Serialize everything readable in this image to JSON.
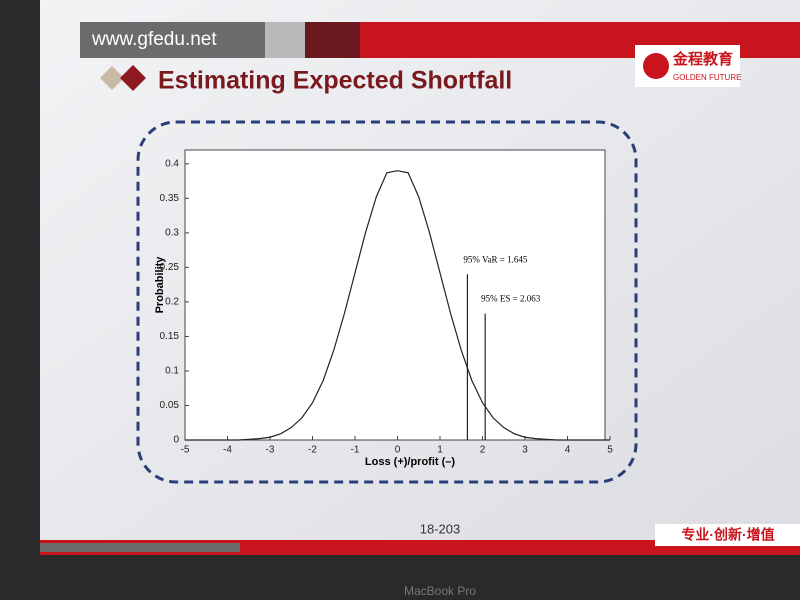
{
  "header": {
    "url": "www.gfedu.net",
    "title": "Estimating Expected Shortfall",
    "logo": "金程教育",
    "logo_sub": "GOLDEN FUTURE"
  },
  "chart_data": {
    "type": "line",
    "x_label": "Loss (+)/profit (–)",
    "y_label": "Probability",
    "x": [
      -5,
      -4.75,
      -4.5,
      -4.25,
      -4,
      -3.75,
      -3.5,
      -3.25,
      -3,
      -2.75,
      -2.5,
      -2.25,
      -2,
      -1.75,
      -1.5,
      -1.25,
      -1,
      -0.75,
      -0.5,
      -0.25,
      0,
      0.25,
      0.5,
      0.75,
      1,
      1.25,
      1.5,
      1.75,
      2,
      2.25,
      2.5,
      2.75,
      3,
      3.25,
      3.5,
      3.75,
      4,
      4.25,
      4.5,
      4.75,
      5
    ],
    "series": [
      {
        "color": "#222222",
        "values": [
          0,
          0,
          0,
          0,
          0,
          0,
          0.001,
          0.002,
          0.004,
          0.009,
          0.018,
          0.032,
          0.054,
          0.086,
          0.13,
          0.183,
          0.242,
          0.301,
          0.352,
          0.387,
          0.39,
          0.387,
          0.352,
          0.301,
          0.242,
          0.183,
          0.13,
          0.086,
          0.054,
          0.032,
          0.018,
          0.009,
          0.004,
          0.002,
          0.001,
          0,
          0,
          0,
          0,
          0,
          0
        ]
      }
    ],
    "markers": [
      {
        "label": "95% VaR = 1.645",
        "x": 1.645,
        "top": 0.24
      },
      {
        "label": "95% ES = 2.063",
        "x": 2.063,
        "top": 0.183
      }
    ],
    "xlim": [
      -5,
      5
    ],
    "xticks": [
      -5,
      -4,
      -3,
      -2,
      -1,
      0,
      1,
      2,
      3,
      4,
      5
    ],
    "ylim": [
      0,
      0.42
    ],
    "yticks": [
      0,
      0.05,
      0.1,
      0.15,
      0.2,
      0.25,
      0.3,
      0.35,
      0.4
    ]
  },
  "footer": {
    "page": "18-203",
    "slogan": "专业·创新·增值",
    "device": "MacBook Pro"
  }
}
